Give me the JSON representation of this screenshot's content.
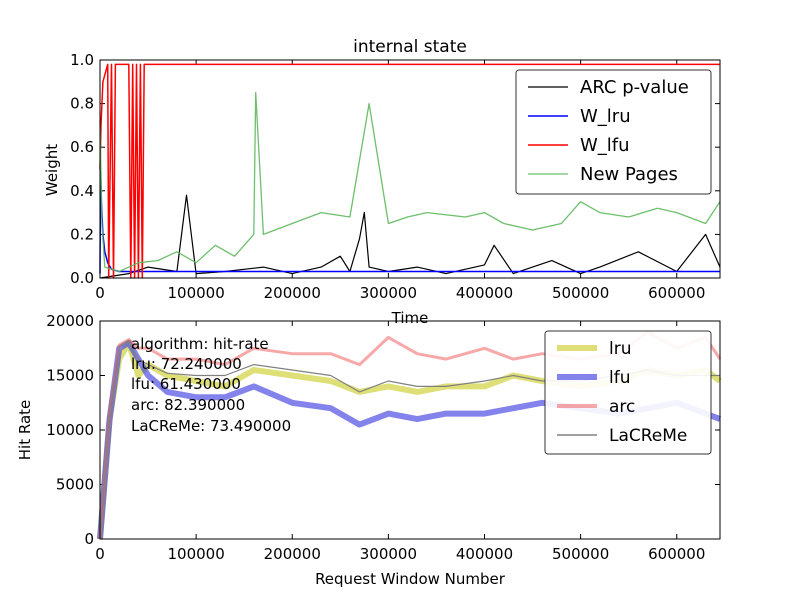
{
  "chart_data": [
    {
      "type": "line",
      "title": "internal state",
      "xlabel": "Time",
      "ylabel": "Weight",
      "xlim": [
        0,
        645000
      ],
      "ylim": [
        0,
        1.0
      ],
      "xticks": [
        0,
        100000,
        200000,
        300000,
        400000,
        500000,
        600000
      ],
      "yticks": [
        0.0,
        0.2,
        0.4,
        0.6,
        0.8,
        1.0
      ],
      "ytick_labels": [
        "0.0",
        "0.2",
        "0.4",
        "0.6",
        "0.8",
        "1.0"
      ],
      "legend_position": "top-right",
      "series": [
        {
          "name": "ARC p-value",
          "color": "#000000",
          "x": [
            0,
            30000,
            50000,
            80000,
            90000,
            100000,
            130000,
            170000,
            200000,
            230000,
            250000,
            260000,
            270000,
            275000,
            280000,
            300000,
            330000,
            360000,
            400000,
            410000,
            430000,
            470000,
            500000,
            520000,
            560000,
            600000,
            630000,
            645000
          ],
          "y": [
            0.0,
            0.02,
            0.05,
            0.03,
            0.38,
            0.02,
            0.03,
            0.05,
            0.02,
            0.05,
            0.1,
            0.03,
            0.18,
            0.3,
            0.05,
            0.03,
            0.05,
            0.02,
            0.06,
            0.15,
            0.02,
            0.08,
            0.02,
            0.05,
            0.12,
            0.03,
            0.2,
            0.05
          ]
        },
        {
          "name": "W_lru",
          "color": "#0000ff",
          "x": [
            0,
            500,
            1500,
            3000,
            5000,
            8000,
            12000,
            20000,
            40000,
            100000,
            200000,
            300000,
            400000,
            500000,
            600000,
            645000
          ],
          "y": [
            0.02,
            0.5,
            0.35,
            0.2,
            0.12,
            0.07,
            0.04,
            0.03,
            0.03,
            0.03,
            0.03,
            0.03,
            0.03,
            0.03,
            0.03,
            0.03
          ],
          "note": ""
        },
        {
          "name": "W_lfu",
          "color": "#ff0000",
          "x": [
            0,
            1000,
            3000,
            8000,
            9000,
            12000,
            14000,
            16000,
            18000,
            30000,
            32000,
            34000,
            36000,
            38000,
            40000,
            42000,
            44000,
            46000,
            48000,
            645000
          ],
          "y": [
            0.5,
            0.7,
            0.9,
            0.98,
            0.0,
            0.98,
            0.0,
            0.98,
            0.98,
            0.98,
            0.0,
            0.98,
            0.0,
            0.98,
            0.0,
            0.98,
            0.0,
            0.98,
            0.98,
            0.98
          ]
        },
        {
          "name": "New Pages",
          "color": "#5cb85c",
          "x": [
            0,
            2000,
            5000,
            20000,
            40000,
            60000,
            80000,
            100000,
            120000,
            140000,
            160000,
            162000,
            170000,
            200000,
            230000,
            260000,
            280000,
            300000,
            320000,
            340000,
            380000,
            400000,
            420000,
            450000,
            480000,
            500000,
            520000,
            550000,
            580000,
            600000,
            630000,
            645000
          ],
          "y": [
            0.72,
            0.25,
            0.05,
            0.03,
            0.07,
            0.08,
            0.12,
            0.07,
            0.15,
            0.1,
            0.2,
            0.85,
            0.2,
            0.25,
            0.3,
            0.28,
            0.8,
            0.25,
            0.28,
            0.3,
            0.28,
            0.3,
            0.25,
            0.22,
            0.25,
            0.35,
            0.3,
            0.28,
            0.32,
            0.3,
            0.25,
            0.35
          ]
        }
      ]
    },
    {
      "type": "line",
      "title": "",
      "xlabel": "Request Window Number",
      "ylabel": "Hit Rate",
      "xlim": [
        0,
        645000
      ],
      "ylim": [
        0,
        20000
      ],
      "xticks": [
        0,
        100000,
        200000,
        300000,
        400000,
        500000,
        600000
      ],
      "yticks": [
        0,
        5000,
        10000,
        15000,
        20000
      ],
      "legend_position": "top-right",
      "annotation": {
        "header": "algorithm:  hit-rate",
        "lines": [
          "lru:  72.240000",
          "lfu:  61.430000",
          "arc:  82.390000",
          "LaCReMe:  73.490000"
        ]
      },
      "series": [
        {
          "name": "lru",
          "color": "#d4d44a",
          "x": [
            0,
            10000,
            20000,
            30000,
            40000,
            50000,
            70000,
            100000,
            130000,
            160000,
            200000,
            240000,
            270000,
            300000,
            330000,
            360000,
            400000,
            430000,
            460000,
            500000,
            540000,
            570000,
            600000,
            630000,
            645000
          ],
          "y": [
            0,
            11000,
            16500,
            18000,
            15000,
            16000,
            15000,
            14500,
            14000,
            15500,
            15000,
            14500,
            13500,
            14000,
            13500,
            14000,
            14000,
            15000,
            14500,
            14000,
            14500,
            15500,
            15000,
            15500,
            14500
          ]
        },
        {
          "name": "lfu",
          "color": "#4040e0",
          "x": [
            0,
            10000,
            20000,
            30000,
            40000,
            50000,
            70000,
            100000,
            130000,
            160000,
            200000,
            240000,
            270000,
            300000,
            330000,
            360000,
            400000,
            430000,
            460000,
            500000,
            540000,
            570000,
            600000,
            630000,
            645000
          ],
          "y": [
            0,
            11000,
            17500,
            18000,
            16500,
            15000,
            13500,
            13000,
            13000,
            14000,
            12500,
            12000,
            10500,
            11500,
            11000,
            11500,
            11500,
            12000,
            12500,
            12000,
            11500,
            12000,
            12500,
            11500,
            11000
          ]
        },
        {
          "name": "arc",
          "color": "#f06060",
          "x": [
            0,
            10000,
            20000,
            30000,
            40000,
            50000,
            70000,
            100000,
            130000,
            160000,
            200000,
            240000,
            270000,
            300000,
            330000,
            360000,
            400000,
            430000,
            460000,
            500000,
            540000,
            570000,
            600000,
            630000,
            645000
          ],
          "y": [
            0,
            11500,
            17800,
            18300,
            17500,
            17500,
            16500,
            16500,
            16000,
            17500,
            17000,
            17000,
            16000,
            18500,
            17000,
            16500,
            17500,
            16500,
            17000,
            16500,
            17000,
            19000,
            17500,
            18500,
            16500
          ]
        },
        {
          "name": "LaCReMe",
          "color": "#808080",
          "x": [
            0,
            10000,
            20000,
            30000,
            40000,
            50000,
            70000,
            100000,
            130000,
            160000,
            200000,
            240000,
            270000,
            300000,
            330000,
            360000,
            400000,
            430000,
            460000,
            500000,
            540000,
            570000,
            600000,
            630000,
            645000
          ],
          "y": [
            0,
            11200,
            17600,
            18200,
            16500,
            16000,
            15200,
            15000,
            15000,
            16000,
            15500,
            15000,
            13500,
            14500,
            14000,
            14000,
            14500,
            15000,
            14500,
            14500,
            15000,
            15500,
            15000,
            15000,
            15000
          ]
        }
      ]
    }
  ]
}
